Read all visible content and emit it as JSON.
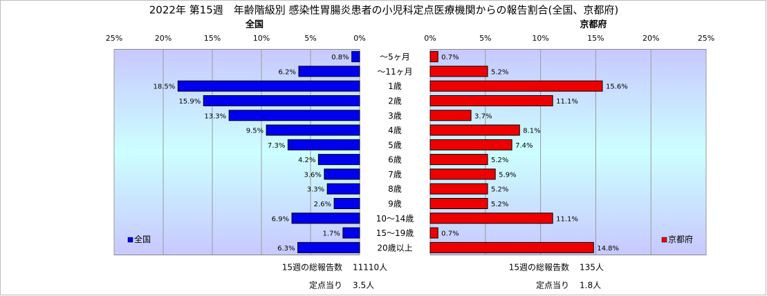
{
  "title": "2022年 第15週　年齢階級別 感染性胃腸炎患者の小児科定点医療機関からの報告割合(全国、京都府)",
  "chart_data": {
    "type": "butterfly",
    "categories": [
      "～5ヶ月",
      "～11ヶ月",
      "1歳",
      "2歳",
      "3歳",
      "4歳",
      "5歳",
      "6歳",
      "7歳",
      "8歳",
      "9歳",
      "10～14歳",
      "15～19歳",
      "20歳以上"
    ],
    "series": [
      {
        "name": "全国",
        "color": "#0000ee",
        "x_direction": "reverse",
        "legend": "lower left",
        "xlim": [
          0,
          25
        ],
        "xticks": [
          {
            "value": 0,
            "label": "0%"
          },
          {
            "value": 5,
            "label": "5%"
          },
          {
            "value": 10,
            "label": "10%"
          },
          {
            "value": 15,
            "label": "15%"
          },
          {
            "value": 20,
            "label": "20%"
          },
          {
            "value": 25,
            "label": "25%"
          }
        ],
        "values": [
          0.8,
          6.2,
          18.5,
          15.9,
          13.3,
          9.5,
          7.3,
          4.2,
          3.6,
          3.3,
          2.6,
          6.9,
          1.7,
          6.3
        ],
        "value_labels": [
          "0.8%",
          "6.2%",
          "18.5%",
          "15.9%",
          "13.3%",
          "9.5%",
          "7.3%",
          "4.2%",
          "3.6%",
          "3.3%",
          "2.6%",
          "6.9%",
          "1.7%",
          "6.3%"
        ]
      },
      {
        "name": "京都府",
        "color": "#ee0000",
        "x_direction": "normal",
        "legend": "lower right",
        "xlim": [
          0,
          25
        ],
        "xticks": [
          {
            "value": 0,
            "label": "0%"
          },
          {
            "value": 5,
            "label": "5%"
          },
          {
            "value": 10,
            "label": "10%"
          },
          {
            "value": 15,
            "label": "15%"
          },
          {
            "value": 20,
            "label": "20%"
          },
          {
            "value": 25,
            "label": "25%"
          }
        ],
        "values": [
          0.7,
          5.2,
          15.6,
          11.1,
          3.7,
          8.1,
          7.4,
          5.2,
          5.9,
          5.2,
          5.2,
          11.1,
          0.7,
          14.8
        ],
        "value_labels": [
          "0.7%",
          "5.2%",
          "15.6%",
          "11.1%",
          "3.7%",
          "8.1%",
          "7.4%",
          "5.2%",
          "5.9%",
          "5.2%",
          "5.2%",
          "11.1%",
          "0.7%",
          "14.8%"
        ]
      }
    ],
    "grid": true
  },
  "footer": [
    {
      "label": "15週の総報告数",
      "count": "11110人",
      "per_point_label": "定点当り",
      "per_point": "3.5人"
    },
    {
      "label": "15週の総報告数",
      "count": "135人",
      "per_point_label": "定点当り",
      "per_point": "1.8人"
    }
  ]
}
